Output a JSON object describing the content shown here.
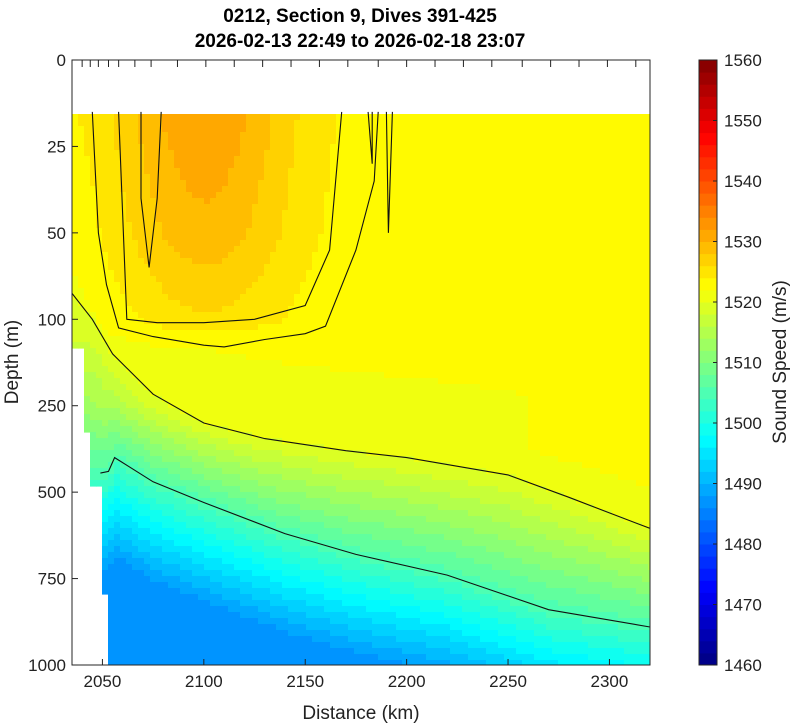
{
  "chart_data": {
    "type": "heatmap",
    "title_line1": "0212, Section 9, Dives 391-425",
    "title_line2": "2026-02-13 22:49 to 2026-02-18 23:07",
    "xlabel": "Distance (km)",
    "ylabel": "Depth (m)",
    "colorbar_label": "Sound Speed (m/s)",
    "xlim": [
      2035,
      2320
    ],
    "ylim": [
      0,
      1000
    ],
    "x_ticks": [
      "2050",
      "2100",
      "2150",
      "2200",
      "2250",
      "2300"
    ],
    "y_ticks": [
      "0",
      "25",
      "50",
      "100",
      "250",
      "500",
      "750",
      "1000"
    ],
    "y_tick_values": [
      0,
      25,
      50,
      100,
      250,
      500,
      750,
      1000
    ],
    "colorbar_ticks": [
      "1460",
      "1470",
      "1480",
      "1490",
      "1500",
      "1510",
      "1520",
      "1530",
      "1540",
      "1550",
      "1560"
    ],
    "clim": [
      1460,
      1560
    ],
    "data_top_depth": 15,
    "dive_ticks_km": [
      2040,
      2044,
      2048,
      2053,
      2058,
      2066,
      2074,
      2087,
      2101,
      2115,
      2129,
      2143,
      2157,
      2171,
      2186,
      2200,
      2214,
      2228,
      2242,
      2257,
      2271,
      2285,
      2299,
      2313
    ],
    "grid": false,
    "contours": [
      {
        "level": 1530,
        "segments": [
          [
            [
              2058,
              15
            ],
            [
              2062,
              100
            ],
            [
              2077,
              106
            ],
            [
              2100,
              106
            ],
            [
              2125,
              100
            ],
            [
              2150,
              92
            ],
            [
              2162,
              60
            ],
            [
              2168,
              15
            ]
          ],
          [
            [
              2069,
              15
            ],
            [
              2069,
              40
            ],
            [
              2073,
              70
            ],
            [
              2077,
              40
            ],
            [
              2079,
              15
            ]
          ],
          [
            [
              2183,
              15
            ],
            [
              2183,
              30
            ],
            [
              2181,
              15
            ]
          ],
          [
            [
              2190,
              15
            ],
            [
              2191,
              50
            ],
            [
              2193,
              15
            ]
          ]
        ]
      },
      {
        "level": 1525,
        "segments": [
          [
            [
              2045,
              15
            ],
            [
              2048,
              50
            ],
            [
              2052,
              80
            ],
            [
              2058,
              115
            ],
            [
              2075,
              130
            ],
            [
              2100,
              145
            ],
            [
              2110,
              148
            ],
            [
              2130,
              135
            ],
            [
              2150,
              125
            ],
            [
              2160,
              112
            ],
            [
              2175,
              60
            ],
            [
              2184,
              35
            ],
            [
              2186,
              15
            ]
          ]
        ]
      },
      {
        "level": 1520,
        "segments": [
          [
            [
              2035,
              85
            ],
            [
              2045,
              100
            ],
            [
              2055,
              160
            ],
            [
              2075,
              230
            ],
            [
              2100,
              300
            ],
            [
              2130,
              345
            ],
            [
              2170,
              380
            ],
            [
              2200,
              400
            ],
            [
              2250,
              450
            ],
            [
              2280,
              515
            ],
            [
              2300,
              560
            ],
            [
              2320,
              605
            ]
          ]
        ]
      },
      {
        "level": 1505,
        "segments": [
          [
            [
              2049,
              445
            ],
            [
              2053,
              440
            ],
            [
              2056,
              400
            ],
            [
              2075,
              470
            ],
            [
              2100,
              530
            ],
            [
              2140,
              620
            ],
            [
              2175,
              680
            ],
            [
              2220,
              740
            ],
            [
              2270,
              840
            ],
            [
              2320,
              890
            ]
          ]
        ]
      }
    ]
  }
}
